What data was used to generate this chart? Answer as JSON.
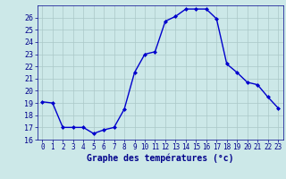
{
  "hours": [
    0,
    1,
    2,
    3,
    4,
    5,
    6,
    7,
    8,
    9,
    10,
    11,
    12,
    13,
    14,
    15,
    16,
    17,
    18,
    19,
    20,
    21,
    22,
    23
  ],
  "temps": [
    19.1,
    19.0,
    17.0,
    17.0,
    17.0,
    16.5,
    16.8,
    17.0,
    18.5,
    21.5,
    23.0,
    23.2,
    25.7,
    26.1,
    26.7,
    26.7,
    26.7,
    25.9,
    22.2,
    21.5,
    20.7,
    20.5,
    19.5,
    18.6
  ],
  "xlabel": "Graphe des températures (°c)",
  "ylim": [
    16,
    27
  ],
  "yticks": [
    16,
    17,
    18,
    19,
    20,
    21,
    22,
    23,
    24,
    25,
    26
  ],
  "xticks": [
    0,
    1,
    2,
    3,
    4,
    5,
    6,
    7,
    8,
    9,
    10,
    11,
    12,
    13,
    14,
    15,
    16,
    17,
    18,
    19,
    20,
    21,
    22,
    23
  ],
  "line_color": "#0000cc",
  "marker": "D",
  "marker_size": 2.0,
  "bg_color": "#cce8e8",
  "grid_color": "#aac8c8",
  "axis_label_color": "#00008b",
  "tick_color": "#00008b",
  "xlabel_fontsize": 7.0,
  "ytick_fontsize": 6.0,
  "xtick_fontsize": 5.5
}
